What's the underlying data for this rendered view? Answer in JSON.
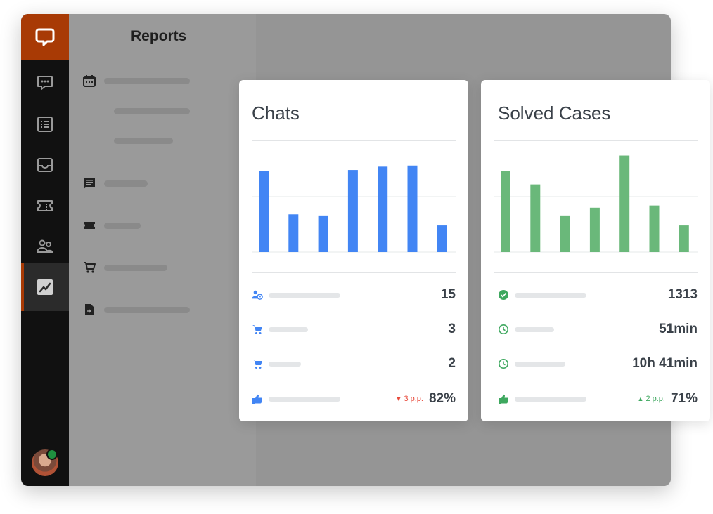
{
  "header": {
    "title": "Reports"
  },
  "colors": {
    "accent": "#a83a05",
    "blue": "#4285f4",
    "green": "#6ab87a",
    "red": "#e8493a"
  },
  "sidebar": {
    "nav_icons": [
      "chat-icon",
      "list-icon",
      "inbox-icon",
      "ticket-icon",
      "people-icon",
      "reports-icon"
    ],
    "active": "reports-icon"
  },
  "report_menu": {
    "icons": [
      "calendar-icon",
      "chat-bubble-icon",
      "ticket-icon",
      "cart-icon",
      "cart-icon",
      "document-icon"
    ]
  },
  "chats_card": {
    "title": "Chats",
    "stats": [
      {
        "icon": "user-clock-icon",
        "value": "15"
      },
      {
        "icon": "cart-icon",
        "value": "3"
      },
      {
        "icon": "cart-icon",
        "value": "2"
      },
      {
        "icon": "thumbs-up-icon",
        "value": "82%",
        "delta": "3 p.p.",
        "delta_dir": "down"
      }
    ]
  },
  "solved_card": {
    "title": "Solved Cases",
    "stats": [
      {
        "icon": "check-circle-icon",
        "value": "1313"
      },
      {
        "icon": "clock-icon",
        "value": "51min"
      },
      {
        "icon": "clock-icon",
        "value": "10h 41min"
      },
      {
        "icon": "thumbs-up-icon",
        "value": "71%",
        "delta": "2 p.p.",
        "delta_dir": "up"
      }
    ]
  },
  "chart_data": [
    {
      "type": "bar",
      "series": [
        {
          "values": [
            0.73,
            0.34,
            0.33,
            0.74,
            0.77,
            0.78,
            0.24
          ]
        }
      ],
      "ylim": [
        0,
        1
      ],
      "grid": true
    },
    {
      "type": "bar",
      "series": [
        {
          "values": [
            0.73,
            0.61,
            0.33,
            0.4,
            0.87,
            0.42,
            0.24
          ]
        }
      ],
      "ylim": [
        0,
        1
      ],
      "grid": true
    }
  ]
}
